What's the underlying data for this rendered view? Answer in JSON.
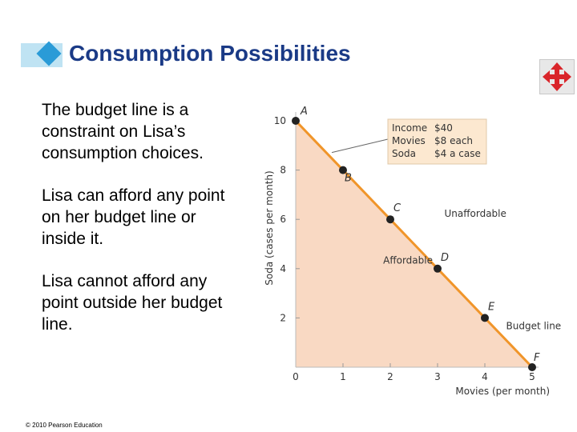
{
  "title": "Consumption Possibilities",
  "bullets": [
    "The budget line is a constraint on Lisa’s consumption choices.",
    "Lisa can afford any point on her budget line or inside it.",
    "Lisa cannot afford any point outside her budget line."
  ],
  "footer": "© 2010 Pearson Education",
  "nav_icon": "four-way-arrows-icon",
  "colors": {
    "title": "#1a3a86",
    "accent": "#2a9bd7",
    "budget_line": "#f0952a",
    "affordable_fill": "#f9d9c3",
    "legend_box": "#fce8d0",
    "nav_icon": "#d9252a"
  },
  "chart_data": {
    "type": "line",
    "xlabel": "Movies (per month)",
    "ylabel": "Soda (cases per month)",
    "xlim": [
      0,
      5
    ],
    "ylim": [
      0,
      10
    ],
    "x_ticks": [
      "0",
      "1",
      "2",
      "3",
      "4",
      "5"
    ],
    "y_ticks": [
      "2",
      "4",
      "6",
      "8",
      "10"
    ],
    "points": [
      {
        "label": "A",
        "x": 0,
        "y": 10
      },
      {
        "label": "B",
        "x": 1,
        "y": 8
      },
      {
        "label": "C",
        "x": 2,
        "y": 6
      },
      {
        "label": "D",
        "x": 3,
        "y": 4
      },
      {
        "label": "E",
        "x": 4,
        "y": 2
      },
      {
        "label": "F",
        "x": 5,
        "y": 0
      }
    ],
    "annotations": {
      "affordable": "Affordable",
      "unaffordable": "Unaffordable",
      "budget_line": "Budget line"
    },
    "legend": [
      {
        "item": "Income",
        "value": "$40"
      },
      {
        "item": "Movies",
        "value": "$8 each"
      },
      {
        "item": "Soda",
        "value": "$4 a case"
      }
    ]
  }
}
